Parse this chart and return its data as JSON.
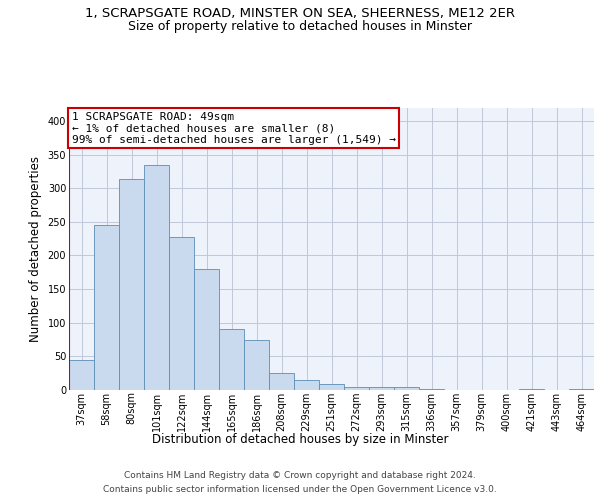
{
  "title_line1": "1, SCRAPSGATE ROAD, MINSTER ON SEA, SHEERNESS, ME12 2ER",
  "title_line2": "Size of property relative to detached houses in Minster",
  "xlabel": "Distribution of detached houses by size in Minster",
  "ylabel": "Number of detached properties",
  "categories": [
    "37sqm",
    "58sqm",
    "80sqm",
    "101sqm",
    "122sqm",
    "144sqm",
    "165sqm",
    "186sqm",
    "208sqm",
    "229sqm",
    "251sqm",
    "272sqm",
    "293sqm",
    "315sqm",
    "336sqm",
    "357sqm",
    "379sqm",
    "400sqm",
    "421sqm",
    "443sqm",
    "464sqm"
  ],
  "values": [
    44,
    245,
    313,
    335,
    227,
    180,
    90,
    75,
    26,
    15,
    9,
    4,
    5,
    4,
    2,
    0,
    0,
    0,
    2,
    0,
    2
  ],
  "bar_color": "#c9d9ee",
  "bar_edge_color": "#5b8db8",
  "ylim": [
    0,
    420
  ],
  "yticks": [
    0,
    50,
    100,
    150,
    200,
    250,
    300,
    350,
    400
  ],
  "annotation_box_text": "1 SCRAPSGATE ROAD: 49sqm\n← 1% of detached houses are smaller (8)\n99% of semi-detached houses are larger (1,549) →",
  "annotation_box_color": "#ffffff",
  "annotation_box_edge_color": "#cc0000",
  "footer_line1": "Contains HM Land Registry data © Crown copyright and database right 2024.",
  "footer_line2": "Contains public sector information licensed under the Open Government Licence v3.0.",
  "background_color": "#edf2fb",
  "grid_color": "#c0c8d8",
  "title_fontsize": 9.5,
  "subtitle_fontsize": 9,
  "axis_label_fontsize": 8.5,
  "tick_fontsize": 7,
  "annotation_fontsize": 8,
  "footer_fontsize": 6.5
}
